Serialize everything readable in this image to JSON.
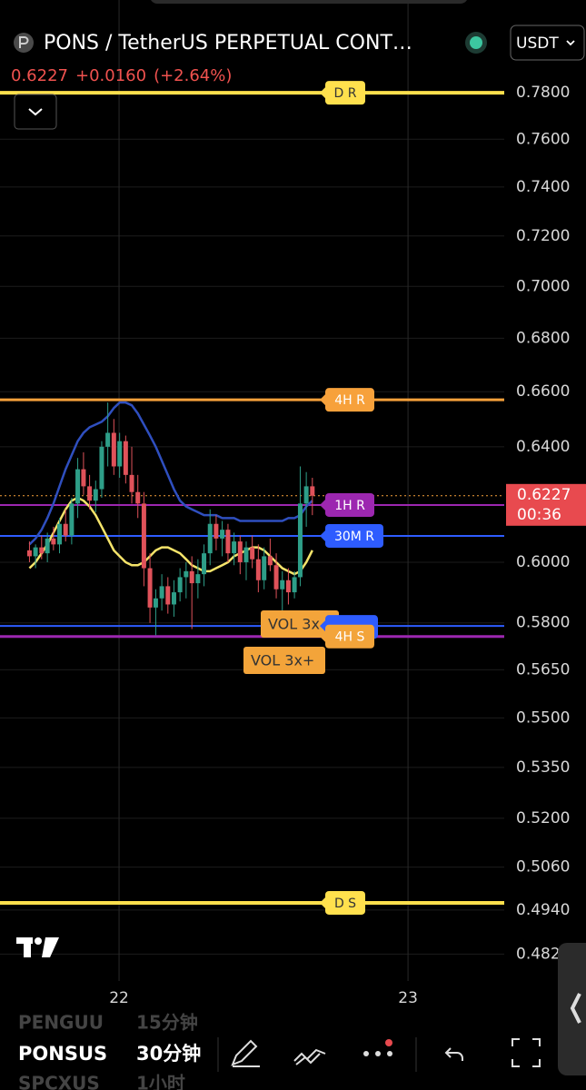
{
  "header": {
    "title": "PONS / TetherUS PERPETUAL CONT…",
    "currency": "USDT",
    "quote": {
      "price": "0.6227",
      "change": "+0.0160",
      "change_pct": "(+2.64%)"
    }
  },
  "chart_data": {
    "type": "candlestick",
    "log_scale": true,
    "grid": true,
    "xlim": [
      21.588,
      23.333
    ],
    "xticks": [
      22,
      23
    ],
    "ylim": [
      0.4748,
      0.8215
    ],
    "yticks": [
      {
        "value": 0.78,
        "label": "0.7800"
      },
      {
        "value": 0.76,
        "label": "0.7600"
      },
      {
        "value": 0.74,
        "label": "0.7400"
      },
      {
        "value": 0.72,
        "label": "0.7200"
      },
      {
        "value": 0.7,
        "label": "0.7000"
      },
      {
        "value": 0.68,
        "label": "0.6800"
      },
      {
        "value": 0.66,
        "label": "0.6600"
      },
      {
        "value": 0.64,
        "label": "0.6400"
      },
      {
        "value": 0.6,
        "label": "0.6000"
      },
      {
        "value": 0.58,
        "label": "0.5800"
      },
      {
        "value": 0.565,
        "label": "0.5650"
      },
      {
        "value": 0.55,
        "label": "0.5500"
      },
      {
        "value": 0.535,
        "label": "0.5350"
      },
      {
        "value": 0.52,
        "label": "0.5200"
      },
      {
        "value": 0.506,
        "label": "0.5060"
      },
      {
        "value": 0.494,
        "label": "0.4940"
      },
      {
        "value": 0.482,
        "label": "0.482"
      }
    ],
    "up_color": "#2e9e88",
    "down_color": "#e0525a",
    "x": [
      21.69,
      21.711,
      21.732,
      21.752,
      21.773,
      21.794,
      21.815,
      21.836,
      21.857,
      21.877,
      21.898,
      21.919,
      21.94,
      21.961,
      21.982,
      22.002,
      22.023,
      22.044,
      22.065,
      22.086,
      22.107,
      22.127,
      22.148,
      22.169,
      22.19,
      22.211,
      22.232,
      22.252,
      22.273,
      22.294,
      22.315,
      22.336,
      22.357,
      22.377,
      22.398,
      22.419,
      22.44,
      22.461,
      22.482,
      22.502,
      22.523,
      22.544,
      22.565,
      22.586,
      22.607,
      22.627,
      22.648,
      22.669
    ],
    "open": [
      0.604,
      0.602,
      0.605,
      0.603,
      0.608,
      0.606,
      0.613,
      0.609,
      0.62,
      0.632,
      0.626,
      0.621,
      0.625,
      0.64,
      0.645,
      0.633,
      0.642,
      0.63,
      0.624,
      0.62,
      0.598,
      0.585,
      0.588,
      0.592,
      0.586,
      0.59,
      0.595,
      0.597,
      0.593,
      0.596,
      0.603,
      0.613,
      0.608,
      0.611,
      0.603,
      0.607,
      0.6,
      0.605,
      0.601,
      0.594,
      0.602,
      0.599,
      0.591,
      0.594,
      0.59,
      0.595,
      0.62,
      0.626
    ],
    "high": [
      0.607,
      0.606,
      0.609,
      0.61,
      0.612,
      0.615,
      0.618,
      0.622,
      0.636,
      0.638,
      0.63,
      0.628,
      0.642,
      0.656,
      0.65,
      0.645,
      0.644,
      0.64,
      0.63,
      0.624,
      0.603,
      0.591,
      0.596,
      0.595,
      0.594,
      0.598,
      0.6,
      0.602,
      0.601,
      0.606,
      0.618,
      0.616,
      0.614,
      0.613,
      0.61,
      0.609,
      0.607,
      0.609,
      0.606,
      0.605,
      0.608,
      0.603,
      0.597,
      0.598,
      0.597,
      0.633,
      0.631,
      0.629
    ],
    "low": [
      0.6,
      0.598,
      0.601,
      0.6,
      0.604,
      0.603,
      0.607,
      0.606,
      0.615,
      0.623,
      0.618,
      0.617,
      0.622,
      0.633,
      0.63,
      0.629,
      0.627,
      0.62,
      0.615,
      0.592,
      0.58,
      0.576,
      0.584,
      0.583,
      0.582,
      0.587,
      0.588,
      0.578,
      0.588,
      0.592,
      0.599,
      0.604,
      0.602,
      0.6,
      0.599,
      0.596,
      0.594,
      0.598,
      0.59,
      0.591,
      0.597,
      0.588,
      0.583,
      0.586,
      0.588,
      0.592,
      0.612,
      0.616
    ],
    "close": [
      0.602,
      0.605,
      0.603,
      0.608,
      0.606,
      0.613,
      0.609,
      0.62,
      0.632,
      0.626,
      0.621,
      0.625,
      0.64,
      0.645,
      0.633,
      0.642,
      0.63,
      0.624,
      0.62,
      0.598,
      0.585,
      0.588,
      0.592,
      0.586,
      0.59,
      0.595,
      0.597,
      0.593,
      0.596,
      0.603,
      0.613,
      0.608,
      0.611,
      0.603,
      0.607,
      0.6,
      0.605,
      0.601,
      0.594,
      0.602,
      0.599,
      0.591,
      0.594,
      0.59,
      0.595,
      0.62,
      0.626,
      0.6227
    ],
    "overlays": [
      {
        "color": "#2f4fbf",
        "values": [
          0.606,
          0.608,
          0.611,
          0.615,
          0.62,
          0.626,
          0.632,
          0.637,
          0.642,
          0.645,
          0.647,
          0.648,
          0.649,
          0.651,
          0.654,
          0.656,
          0.656,
          0.655,
          0.652,
          0.648,
          0.644,
          0.64,
          0.635,
          0.63,
          0.625,
          0.621,
          0.619,
          0.618,
          0.617,
          0.616,
          0.616,
          0.616,
          0.615,
          0.615,
          0.615,
          0.614,
          0.614,
          0.614,
          0.614,
          0.614,
          0.614,
          0.614,
          0.614,
          0.615,
          0.615,
          0.616,
          0.619,
          0.621
        ]
      },
      {
        "color": "#f5e46a",
        "values": [
          0.598,
          0.6,
          0.603,
          0.606,
          0.61,
          0.614,
          0.618,
          0.621,
          0.622,
          0.621,
          0.619,
          0.616,
          0.612,
          0.608,
          0.604,
          0.602,
          0.6,
          0.599,
          0.599,
          0.6,
          0.602,
          0.604,
          0.605,
          0.605,
          0.604,
          0.603,
          0.601,
          0.599,
          0.598,
          0.597,
          0.597,
          0.598,
          0.599,
          0.6,
          0.602,
          0.603,
          0.604,
          0.605,
          0.605,
          0.604,
          0.602,
          0.6,
          0.598,
          0.597,
          0.596,
          0.597,
          0.6,
          0.604
        ]
      }
    ],
    "levels": [
      {
        "label": "D R",
        "value": 0.78,
        "color": "#ffe04d",
        "width": 4,
        "label_color": "#ffe04d",
        "text_color": "#333333"
      },
      {
        "label": "4H R",
        "value": 0.657,
        "color": "#f7a13b",
        "width": 3,
        "label_color": "#f7a13b",
        "text_color": "#ffffff"
      },
      {
        "label": "1H R",
        "value": 0.6195,
        "color": "#9c27b0",
        "width": 2,
        "label_color": "#9c27b0",
        "text_color": "#ffffff"
      },
      {
        "label": "30M R",
        "value": 0.6089,
        "color": "#2e5cff",
        "width": 2,
        "label_color": "#2e5cff",
        "text_color": "#ffffff"
      },
      {
        "label": null,
        "value": 0.579,
        "color": "#2e5cff",
        "width": 2,
        "label_color": "#2e5cff",
        "text_color": "#ffffff"
      },
      {
        "label": "4H S",
        "value": 0.5756,
        "color": "#9c27b0",
        "width": 3,
        "label_color": "#f3a43a",
        "text_color": "#ffffff"
      },
      {
        "label": "D S",
        "value": 0.496,
        "color": "#ffe04d",
        "width": 4,
        "label_color": "#ffe04d",
        "text_color": "#333333"
      }
    ],
    "annotations": [
      {
        "text": "VOL 3x"
      },
      {
        "text": "VOL 3x+"
      }
    ],
    "last_price": {
      "value": 0.6227,
      "countdown": "00:36",
      "color": "#e84a4f"
    }
  },
  "toolbar": {
    "symbols": [
      {
        "symbol": "PENGUU",
        "interval": "15分钟"
      },
      {
        "symbol": "PONSUS",
        "interval": "30分钟"
      },
      {
        "symbol": "SPCXUS",
        "interval": "1小时"
      }
    ]
  }
}
